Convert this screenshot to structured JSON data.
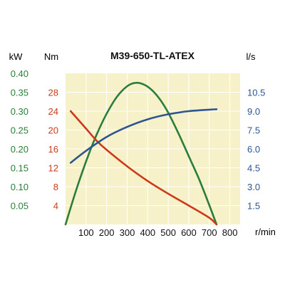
{
  "chart_data": {
    "type": "line",
    "title": "M39-650-TL-ATEX",
    "x_unit": "r/min",
    "x_ticks": [
      100,
      200,
      300,
      400,
      500,
      600,
      700,
      800
    ],
    "xlim": [
      0,
      850
    ],
    "grid": true,
    "background": "#f6f1c8",
    "axes": [
      {
        "id": "power",
        "unit": "kW",
        "side": "left-outer",
        "color": "#2b7d3b",
        "ylim": [
          0,
          0.4
        ],
        "ticks": [
          "0.05",
          "0.10",
          "0.15",
          "0.20",
          "0.25",
          "0.30",
          "0.35",
          "0.40"
        ],
        "tick_values": [
          0.05,
          0.1,
          0.15,
          0.2,
          0.25,
          0.3,
          0.35,
          0.4
        ]
      },
      {
        "id": "torque",
        "unit": "Nm",
        "side": "left-inner",
        "color": "#cc3a1b",
        "ylim": [
          0,
          32
        ],
        "ticks": [
          "4",
          "8",
          "12",
          "16",
          "20",
          "24",
          "28"
        ],
        "tick_values": [
          4,
          8,
          12,
          16,
          20,
          24,
          28
        ]
      },
      {
        "id": "flow",
        "unit": "l/s",
        "side": "right",
        "color": "#2d5590",
        "ylim": [
          0,
          12
        ],
        "ticks": [
          "1.5",
          "3.0",
          "4.5",
          "6.0",
          "7.5",
          "9.0",
          "10.5"
        ],
        "tick_values": [
          1.5,
          3.0,
          4.5,
          6.0,
          7.5,
          9.0,
          10.5
        ]
      }
    ],
    "series": [
      {
        "axis": "power",
        "color": "#2b7d3b",
        "x": [
          0,
          50,
          100,
          150,
          200,
          250,
          300,
          340,
          380,
          420,
          460,
          500,
          550,
          600,
          650,
          700,
          735
        ],
        "y": [
          0.0,
          0.088,
          0.167,
          0.236,
          0.293,
          0.338,
          0.366,
          0.375,
          0.371,
          0.356,
          0.331,
          0.296,
          0.241,
          0.181,
          0.12,
          0.051,
          0.0
        ]
      },
      {
        "axis": "torque",
        "color": "#cc3a1b",
        "x": [
          25,
          100,
          150,
          200,
          300,
          400,
          500,
          600,
          700,
          735
        ],
        "y": [
          24.0,
          20.3,
          17.8,
          15.8,
          12.3,
          9.2,
          6.5,
          4.0,
          1.4,
          0.0
        ]
      },
      {
        "axis": "flow",
        "color": "#2d5590",
        "x": [
          25,
          100,
          200,
          300,
          400,
          500,
          600,
          700,
          735
        ],
        "y": [
          4.9,
          5.85,
          6.95,
          7.75,
          8.35,
          8.75,
          9.0,
          9.12,
          9.15
        ]
      }
    ]
  }
}
